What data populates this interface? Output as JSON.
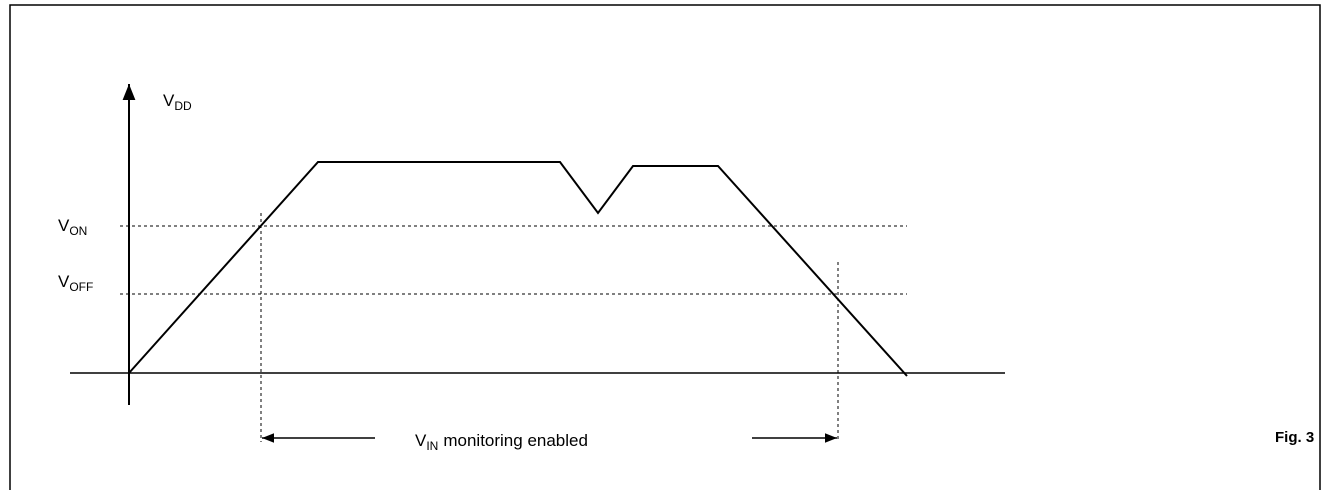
{
  "axis_labels": [
    {
      "symbol": "V",
      "subscript": "DD"
    },
    {
      "symbol": "V",
      "subscript": "ON"
    },
    {
      "symbol": "V",
      "subscript": "OFF"
    }
  ],
  "caption": {
    "symbol": "V",
    "subscript": "IN",
    "text": "monitoring enabled"
  },
  "figure": "Fig. 3"
}
